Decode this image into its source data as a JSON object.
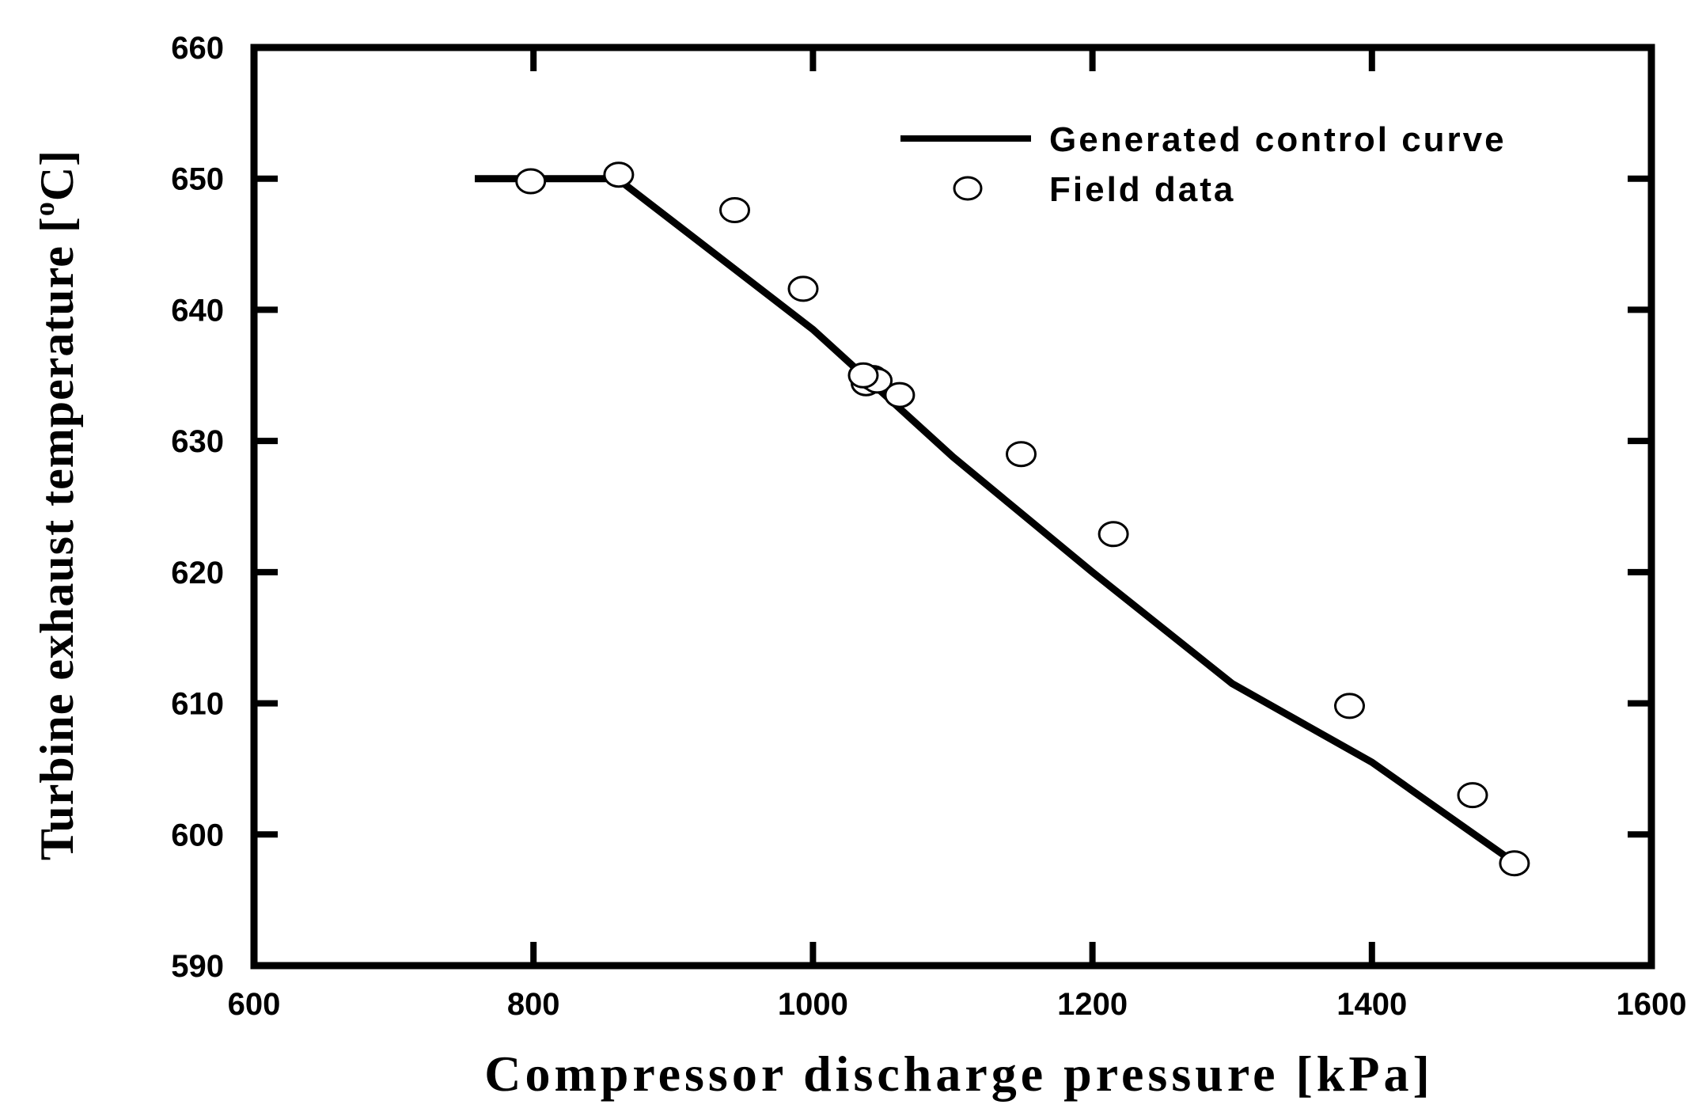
{
  "chart_data": {
    "type": "line",
    "title": "",
    "xlabel": "Compressor discharge pressure [kPa]",
    "ylabel": "Turbine exhaust temperature [",
    "ylabel_sup": "o",
    "ylabel_suffix": "C]",
    "xlim": [
      600,
      1600
    ],
    "ylim": [
      590,
      660
    ],
    "x_ticks": [
      600,
      800,
      1000,
      1200,
      1400,
      1600
    ],
    "y_ticks": [
      590,
      600,
      610,
      620,
      630,
      640,
      650,
      660
    ],
    "x_tick_labels": [
      "600",
      "800",
      "1000",
      "1200",
      "1400",
      "1600"
    ],
    "y_tick_labels": [
      "590",
      "600",
      "610",
      "620",
      "630",
      "640",
      "650",
      "660"
    ],
    "grid": false,
    "legend_position": "top-right",
    "series": [
      {
        "name": "Generated control curve",
        "kind": "line",
        "x": [
          758,
          860,
          1000,
          1100,
          1200,
          1300,
          1400,
          1500
        ],
        "y": [
          650,
          650,
          638.5,
          628.8,
          620.0,
          611.5,
          605.5,
          598.0
        ]
      },
      {
        "name": "Field data",
        "kind": "scatter",
        "marker": "open-circle",
        "x": [
          798,
          861,
          944,
          993,
          1038,
          1043,
          1046,
          1036,
          1062,
          1149,
          1215,
          1384,
          1472,
          1502
        ],
        "y": [
          649.8,
          650.3,
          647.6,
          641.6,
          634.4,
          634.8,
          634.6,
          635.0,
          633.5,
          629.0,
          622.9,
          609.8,
          603.0,
          597.8
        ]
      }
    ]
  }
}
